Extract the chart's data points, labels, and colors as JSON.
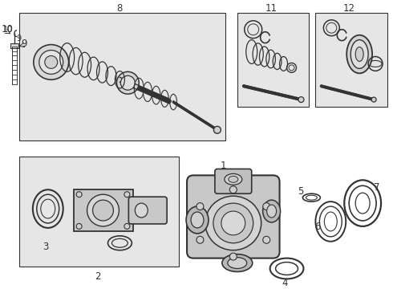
{
  "bg_color": "#f0f0f0",
  "line_color": "#333333",
  "box_bg": "#e8e8e8",
  "white": "#ffffff",
  "lc": "#333333"
}
